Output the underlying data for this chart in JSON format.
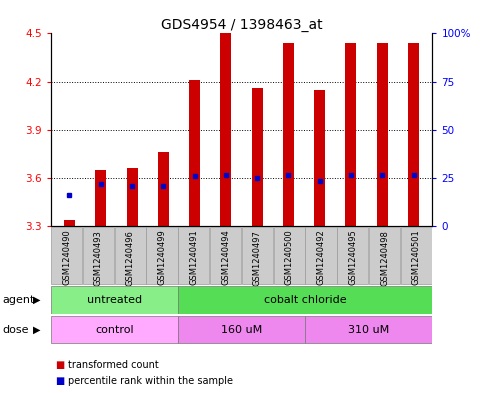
{
  "title": "GDS4954 / 1398463_at",
  "samples": [
    "GSM1240490",
    "GSM1240493",
    "GSM1240496",
    "GSM1240499",
    "GSM1240491",
    "GSM1240494",
    "GSM1240497",
    "GSM1240500",
    "GSM1240492",
    "GSM1240495",
    "GSM1240498",
    "GSM1240501"
  ],
  "transformed_count": [
    3.34,
    3.65,
    3.66,
    3.76,
    4.21,
    4.5,
    4.16,
    4.44,
    4.15,
    4.44,
    4.44,
    4.44
  ],
  "percentile_rank": [
    3.49,
    3.56,
    3.55,
    3.55,
    3.61,
    3.62,
    3.6,
    3.62,
    3.58,
    3.62,
    3.62,
    3.62
  ],
  "bar_bottom": 3.3,
  "ylim": [
    3.3,
    4.5
  ],
  "yticks_left": [
    3.3,
    3.6,
    3.9,
    4.2,
    4.5
  ],
  "yticks_right": [
    0,
    25,
    50,
    75,
    100
  ],
  "yticks_right_labels": [
    "0",
    "25",
    "50",
    "75",
    "100%"
  ],
  "bar_color": "#cc0000",
  "percentile_color": "#0000cc",
  "agent_groups": [
    {
      "label": "untreated",
      "start": 0,
      "end": 4,
      "color": "#88ee88"
    },
    {
      "label": "cobalt chloride",
      "start": 4,
      "end": 12,
      "color": "#55dd55"
    }
  ],
  "dose_groups": [
    {
      "label": "control",
      "start": 0,
      "end": 4,
      "color": "#ffaaff"
    },
    {
      "label": "160 uM",
      "start": 4,
      "end": 8,
      "color": "#ee88ee"
    },
    {
      "label": "310 uM",
      "start": 8,
      "end": 12,
      "color": "#ee88ee"
    }
  ],
  "legend_red": "transformed count",
  "legend_blue": "percentile rank within the sample",
  "agent_label": "agent",
  "dose_label": "dose",
  "background_color": "#ffffff",
  "title_fontsize": 10,
  "tick_fontsize": 7.5,
  "sample_fontsize": 6,
  "label_fontsize": 8,
  "bar_width": 0.35
}
